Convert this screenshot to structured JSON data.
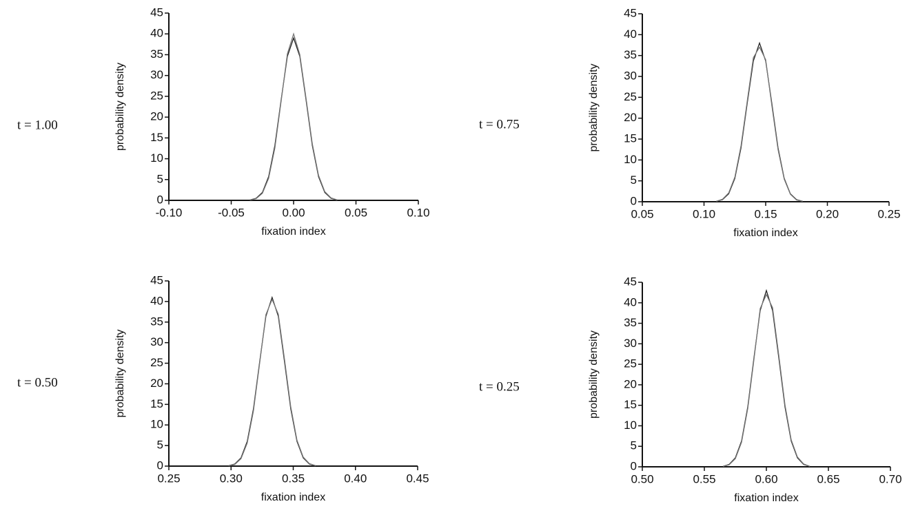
{
  "chart_data": [
    {
      "type": "line",
      "label": "t = 1.00",
      "xlabel": "fixation index",
      "ylabel": "probability density",
      "x": [
        -0.035,
        -0.03,
        -0.025,
        -0.02,
        -0.015,
        -0.01,
        -0.005,
        0,
        0.005,
        0.01,
        0.015,
        0.02,
        0.025,
        0.03,
        0.035
      ],
      "series": [
        {
          "color": "#222222",
          "values": [
            0.1,
            0.5,
            1.9,
            5.7,
            13.2,
            24.1,
            34.6,
            39,
            34.6,
            24.1,
            13.2,
            5.7,
            1.9,
            0.5,
            0.1
          ]
        },
        {
          "color": "#777777",
          "values": [
            0.1,
            0.4,
            1.7,
            5.3,
            12.6,
            23.8,
            35.2,
            40,
            35.0,
            24.5,
            13.6,
            6.0,
            2.1,
            0.6,
            0.1
          ]
        }
      ],
      "xlim": [
        -0.1,
        0.1
      ],
      "ylim": [
        0,
        45
      ],
      "xticks": [
        {
          "value": -0.1,
          "label": "-0.10"
        },
        {
          "value": -0.05,
          "label": "-0.05"
        },
        {
          "value": 0,
          "label": "0.00"
        },
        0.05,
        {
          "value": 0.1,
          "label": "0.10"
        }
      ],
      "yticks": [
        0,
        5,
        10,
        15,
        20,
        25,
        30,
        35,
        40,
        45
      ]
    },
    {
      "type": "line",
      "label": "t = 0.75",
      "xlabel": "fixation index",
      "ylabel": "probability density",
      "x": [
        0.11,
        0.115,
        0.12,
        0.125,
        0.13,
        0.135,
        0.14,
        0.145,
        0.15,
        0.155,
        0.16,
        0.165,
        0.17,
        0.175,
        0.18
      ],
      "series": [
        {
          "color": "#222222",
          "values": [
            0.1,
            0.5,
            1.9,
            5.6,
            12.9,
            23.5,
            33.7,
            38,
            33.7,
            23.5,
            12.9,
            5.6,
            1.9,
            0.5,
            0.1
          ]
        },
        {
          "color": "#777777",
          "values": [
            0.1,
            0.6,
            2.1,
            5.9,
            13.4,
            24.0,
            34.5,
            37,
            34.0,
            23.0,
            12.5,
            5.4,
            1.8,
            0.4,
            0.1
          ]
        }
      ],
      "xlim": [
        0.05,
        0.25
      ],
      "ylim": [
        0,
        45
      ],
      "xticks": [
        0.05,
        {
          "value": 0.1,
          "label": "0.10"
        },
        0.15,
        {
          "value": 0.2,
          "label": "0.20"
        },
        0.25
      ],
      "yticks": [
        0,
        5,
        10,
        15,
        20,
        25,
        30,
        35,
        40,
        45
      ]
    },
    {
      "type": "line",
      "label": "t = 0.50",
      "xlabel": "fixation index",
      "ylabel": "probability density",
      "x": [
        0.298,
        0.303,
        0.308,
        0.313,
        0.318,
        0.323,
        0.328,
        0.333,
        0.338,
        0.343,
        0.348,
        0.353,
        0.358,
        0.363,
        0.368
      ],
      "series": [
        {
          "color": "#222222",
          "values": [
            0.1,
            0.5,
            2.0,
            6.0,
            13.9,
            25.3,
            36.4,
            41,
            36.4,
            25.3,
            13.9,
            6.0,
            2.0,
            0.5,
            0.1
          ]
        },
        {
          "color": "#777777",
          "values": [
            0.1,
            0.4,
            1.8,
            5.6,
            13.4,
            25.0,
            36.8,
            40.5,
            36.9,
            25.9,
            14.4,
            6.3,
            2.2,
            0.6,
            0.1
          ]
        }
      ],
      "xlim": [
        0.25,
        0.45
      ],
      "ylim": [
        0,
        45
      ],
      "xticks": [
        0.25,
        {
          "value": 0.3,
          "label": "0.30"
        },
        0.35,
        {
          "value": 0.4,
          "label": "0.40"
        },
        0.45
      ],
      "yticks": [
        0,
        5,
        10,
        15,
        20,
        25,
        30,
        35,
        40,
        45
      ]
    },
    {
      "type": "line",
      "label": "t = 0.25",
      "xlabel": "fixation index",
      "ylabel": "probability density",
      "x": [
        0.565,
        0.57,
        0.575,
        0.58,
        0.585,
        0.59,
        0.595,
        0.6,
        0.605,
        0.61,
        0.615,
        0.62,
        0.625,
        0.63,
        0.635
      ],
      "series": [
        {
          "color": "#222222",
          "values": [
            0.1,
            0.6,
            2.2,
            6.3,
            14.6,
            26.6,
            38.1,
            43,
            38.1,
            26.6,
            14.6,
            6.3,
            2.2,
            0.6,
            0.1
          ]
        },
        {
          "color": "#777777",
          "values": [
            0.1,
            0.5,
            2.0,
            6.0,
            14.2,
            26.2,
            38.6,
            42,
            38.8,
            27.2,
            15.1,
            6.6,
            2.4,
            0.7,
            0.1
          ]
        }
      ],
      "xlim": [
        0.5,
        0.7
      ],
      "ylim": [
        0,
        45
      ],
      "xticks": [
        {
          "value": 0.5,
          "label": "0.50"
        },
        0.55,
        {
          "value": 0.6,
          "label": "0.60"
        },
        0.65,
        {
          "value": 0.7,
          "label": "0.70"
        }
      ],
      "yticks": [
        0,
        5,
        10,
        15,
        20,
        25,
        30,
        35,
        40,
        45
      ]
    }
  ]
}
